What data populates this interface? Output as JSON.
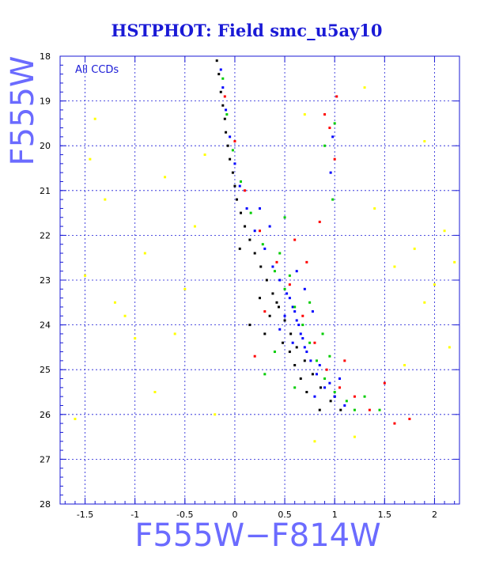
{
  "chart_data": {
    "type": "scatter",
    "title": "HSTPHOT: Field smc_u5ay10",
    "annotation": "All CCDs",
    "xlabel": "F555W−F814W",
    "ylabel": "F555W",
    "xlim": [
      -1.75,
      2.25
    ],
    "ylim": [
      28,
      18
    ],
    "y_inverted": true,
    "grid": true,
    "xticks": [
      -1.5,
      -1,
      -0.5,
      0,
      0.5,
      1,
      1.5,
      2
    ],
    "xtick_labels": [
      "-1.5",
      "-1",
      "-0.5",
      "0",
      "0.5",
      "1",
      "1.5",
      "2"
    ],
    "yticks": [
      18,
      19,
      20,
      21,
      22,
      23,
      24,
      25,
      26,
      27,
      28
    ],
    "ytick_labels": [
      "18",
      "19",
      "20",
      "21",
      "22",
      "23",
      "24",
      "25",
      "26",
      "27",
      "28"
    ],
    "series": [
      {
        "color": "#000000",
        "points": [
          [
            -0.18,
            18.1
          ],
          [
            -0.16,
            18.4
          ],
          [
            -0.14,
            18.8
          ],
          [
            -0.12,
            19.1
          ],
          [
            -0.1,
            19.4
          ],
          [
            -0.09,
            19.7
          ],
          [
            -0.07,
            20.0
          ],
          [
            -0.05,
            20.3
          ],
          [
            -0.02,
            20.6
          ],
          [
            0.0,
            20.9
          ],
          [
            0.02,
            21.2
          ],
          [
            0.06,
            21.5
          ],
          [
            0.1,
            21.8
          ],
          [
            0.15,
            22.1
          ],
          [
            0.2,
            22.4
          ],
          [
            0.26,
            22.7
          ],
          [
            0.32,
            23.0
          ],
          [
            0.38,
            23.3
          ],
          [
            0.44,
            23.6
          ],
          [
            0.5,
            23.9
          ],
          [
            0.56,
            24.2
          ],
          [
            0.62,
            24.5
          ],
          [
            0.7,
            24.8
          ],
          [
            0.78,
            25.1
          ],
          [
            0.86,
            25.4
          ],
          [
            0.96,
            25.7
          ],
          [
            1.06,
            25.9
          ],
          [
            0.42,
            23.5
          ],
          [
            0.3,
            24.2
          ],
          [
            0.6,
            24.9
          ],
          [
            0.25,
            23.4
          ],
          [
            0.48,
            24.4
          ],
          [
            0.15,
            24.0
          ],
          [
            0.72,
            25.5
          ],
          [
            0.85,
            25.9
          ],
          [
            0.05,
            22.3
          ],
          [
            0.35,
            23.8
          ],
          [
            0.55,
            24.6
          ],
          [
            0.66,
            25.2
          ],
          [
            1.0,
            25.6
          ]
        ]
      },
      {
        "color": "#0000ff",
        "points": [
          [
            -0.14,
            18.3
          ],
          [
            -0.12,
            18.7
          ],
          [
            -0.09,
            19.2
          ],
          [
            -0.05,
            19.8
          ],
          [
            0.0,
            20.4
          ],
          [
            0.05,
            20.9
          ],
          [
            0.12,
            21.4
          ],
          [
            0.2,
            21.9
          ],
          [
            0.3,
            22.3
          ],
          [
            0.38,
            22.7
          ],
          [
            0.45,
            23.0
          ],
          [
            0.52,
            23.3
          ],
          [
            0.58,
            23.6
          ],
          [
            0.62,
            23.9
          ],
          [
            0.66,
            24.2
          ],
          [
            0.7,
            24.5
          ],
          [
            0.76,
            24.8
          ],
          [
            0.82,
            25.1
          ],
          [
            0.9,
            25.4
          ],
          [
            1.0,
            25.6
          ],
          [
            1.1,
            25.8
          ],
          [
            0.55,
            23.4
          ],
          [
            0.6,
            23.7
          ],
          [
            0.64,
            24.0
          ],
          [
            0.68,
            24.3
          ],
          [
            0.72,
            24.6
          ],
          [
            0.5,
            23.8
          ],
          [
            0.58,
            24.4
          ],
          [
            0.85,
            24.9
          ],
          [
            0.95,
            25.3
          ],
          [
            0.62,
            22.8
          ],
          [
            0.7,
            23.2
          ],
          [
            0.78,
            23.7
          ],
          [
            0.45,
            24.1
          ],
          [
            0.8,
            25.6
          ],
          [
            1.05,
            25.2
          ],
          [
            0.25,
            21.4
          ],
          [
            0.35,
            21.8
          ],
          [
            0.98,
            19.8
          ],
          [
            0.96,
            20.6
          ]
        ]
      },
      {
        "color": "#00cc00",
        "points": [
          [
            -0.12,
            18.5
          ],
          [
            -0.08,
            19.3
          ],
          [
            -0.02,
            20.1
          ],
          [
            0.06,
            20.8
          ],
          [
            0.16,
            21.5
          ],
          [
            0.28,
            22.2
          ],
          [
            0.4,
            22.8
          ],
          [
            0.5,
            23.2
          ],
          [
            0.6,
            23.6
          ],
          [
            0.68,
            24.0
          ],
          [
            0.75,
            24.4
          ],
          [
            0.82,
            24.8
          ],
          [
            0.9,
            25.2
          ],
          [
            1.0,
            25.5
          ],
          [
            1.12,
            25.7
          ],
          [
            1.2,
            25.9
          ],
          [
            0.45,
            22.4
          ],
          [
            0.55,
            22.9
          ],
          [
            0.75,
            23.5
          ],
          [
            0.88,
            24.2
          ],
          [
            0.95,
            24.7
          ],
          [
            0.4,
            24.6
          ],
          [
            0.3,
            25.1
          ],
          [
            0.6,
            25.4
          ],
          [
            0.9,
            20.0
          ],
          [
            1.0,
            19.5
          ],
          [
            0.98,
            21.2
          ],
          [
            0.5,
            21.6
          ],
          [
            1.3,
            25.6
          ],
          [
            1.45,
            25.9
          ]
        ]
      },
      {
        "color": "#ff0000",
        "points": [
          [
            -0.1,
            18.9
          ],
          [
            0.0,
            19.9
          ],
          [
            0.1,
            21.0
          ],
          [
            0.25,
            21.9
          ],
          [
            0.42,
            22.6
          ],
          [
            0.55,
            23.1
          ],
          [
            0.68,
            23.8
          ],
          [
            0.8,
            24.4
          ],
          [
            0.92,
            25.0
          ],
          [
            1.05,
            25.4
          ],
          [
            1.2,
            25.6
          ],
          [
            1.35,
            25.9
          ],
          [
            0.95,
            19.6
          ],
          [
            1.0,
            20.3
          ],
          [
            0.9,
            19.3
          ],
          [
            1.02,
            18.9
          ],
          [
            0.6,
            22.1
          ],
          [
            0.72,
            22.6
          ],
          [
            0.3,
            23.7
          ],
          [
            0.2,
            24.7
          ],
          [
            1.6,
            26.2
          ],
          [
            1.75,
            26.1
          ],
          [
            1.5,
            25.3
          ],
          [
            0.85,
            21.7
          ],
          [
            1.1,
            24.8
          ]
        ]
      },
      {
        "color": "#ffff00",
        "points": [
          [
            -1.4,
            19.4
          ],
          [
            -1.3,
            21.2
          ],
          [
            -1.5,
            22.9
          ],
          [
            -1.2,
            23.5
          ],
          [
            -0.9,
            22.4
          ],
          [
            -0.7,
            20.7
          ],
          [
            -0.6,
            24.2
          ],
          [
            -1.0,
            24.3
          ],
          [
            -1.6,
            26.1
          ],
          [
            -0.4,
            21.8
          ],
          [
            -0.3,
            20.2
          ],
          [
            -1.1,
            23.8
          ],
          [
            0.8,
            26.6
          ],
          [
            1.6,
            22.7
          ],
          [
            1.8,
            22.3
          ],
          [
            2.1,
            21.9
          ],
          [
            2.2,
            22.6
          ],
          [
            1.9,
            23.5
          ],
          [
            1.4,
            21.4
          ],
          [
            1.7,
            24.9
          ],
          [
            2.0,
            23.1
          ],
          [
            -0.8,
            25.5
          ],
          [
            -0.2,
            26.0
          ],
          [
            1.2,
            26.5
          ],
          [
            -1.45,
            20.3
          ],
          [
            0.7,
            19.3
          ],
          [
            1.3,
            18.7
          ],
          [
            1.9,
            19.9
          ],
          [
            -0.5,
            23.2
          ],
          [
            2.15,
            24.5
          ]
        ]
      }
    ]
  }
}
